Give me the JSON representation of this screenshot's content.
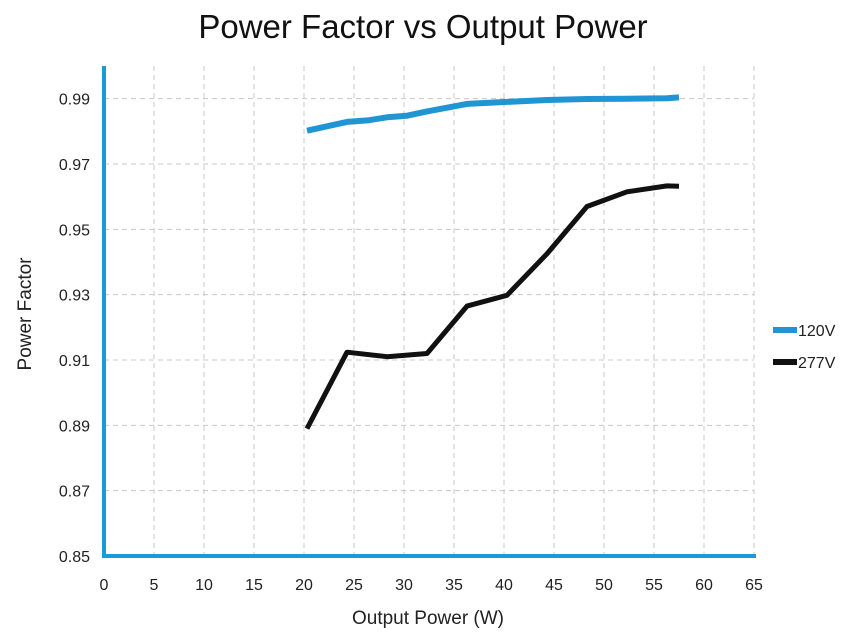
{
  "chart_data": {
    "type": "line",
    "title": "Power Factor vs Output Power",
    "xlabel": "Output Power (W)",
    "ylabel": "Power Factor",
    "xlim": [
      0,
      65
    ],
    "ylim": [
      0.85,
      1.0
    ],
    "x_ticks": [
      0,
      5,
      10,
      15,
      20,
      25,
      30,
      35,
      40,
      45,
      50,
      55,
      60,
      65
    ],
    "y_ticks": [
      0.85,
      0.87,
      0.89,
      0.91,
      0.93,
      0.95,
      0.97,
      0.99
    ],
    "y_tick_labels": [
      "0.85",
      "0.87",
      "0.89",
      "0.91",
      "0.93",
      "0.95",
      "0.97",
      "0.99"
    ],
    "grid": true,
    "legend_position": "right",
    "axis_color": "#1a9ad6",
    "series": [
      {
        "name": "120V",
        "color": "#1f96d3",
        "x": [
          20.3,
          24.3,
          26.5,
          28.3,
          30.3,
          32.3,
          36.3,
          40.3,
          44.3,
          48.3,
          52.3,
          56.3,
          57.5
        ],
        "y": [
          0.9802,
          0.9829,
          0.9834,
          0.9843,
          0.9848,
          0.9861,
          0.9884,
          0.989,
          0.9896,
          0.9899,
          0.99,
          0.9901,
          0.9904
        ]
      },
      {
        "name": "277V",
        "color": "#111111",
        "x": [
          20.3,
          24.3,
          28.3,
          32.3,
          36.3,
          40.3,
          44.3,
          48.3,
          52.3,
          56.3,
          57.5
        ],
        "y": [
          0.889,
          0.9124,
          0.911,
          0.912,
          0.9265,
          0.9298,
          0.9425,
          0.957,
          0.9615,
          0.9633,
          0.9632
        ]
      }
    ]
  }
}
